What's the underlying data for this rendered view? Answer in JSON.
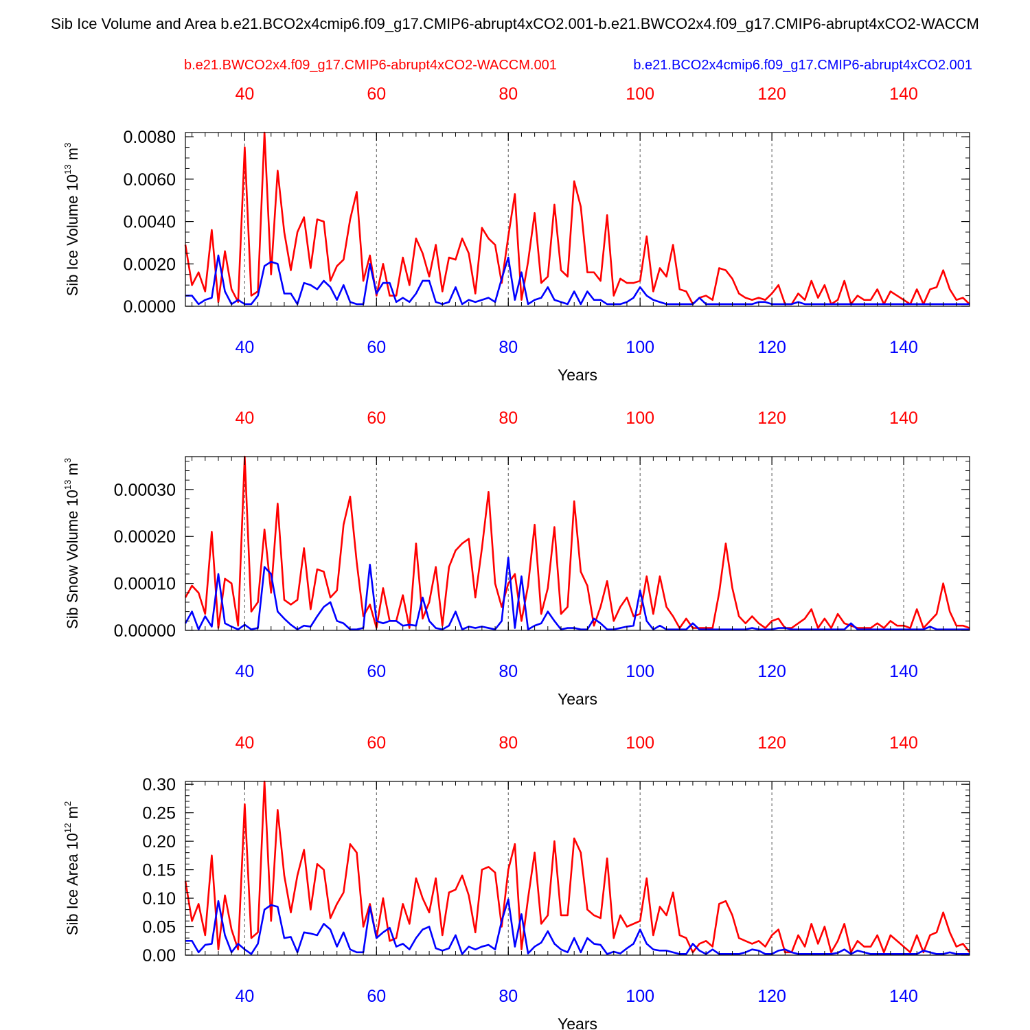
{
  "title": "Sib Ice Volume and Area b.e21.BCO2x4cmip6.f09_g17.CMIP6-abrupt4xCO2.001-b.e21.BWCO2x4.f09_g17.CMIP6-abrupt4xCO2-WACCM",
  "colors": {
    "run_red": "#ff0000",
    "run_blue": "#0000ff",
    "axis": "#000000",
    "grid": "#555555"
  },
  "legend": {
    "red": "b.e21.BWCO2x4.f09_g17.CMIP6-abrupt4xCO2-WACCM.001",
    "blue": "b.e21.BCO2x4cmip6.f09_g17.CMIP6-abrupt4xCO2.001"
  },
  "chart_data": [
    {
      "type": "line",
      "ylabel": {
        "text": "Sib Ice Volume 10",
        "exp": "13",
        "unit": " m",
        "unit_exp": "3"
      },
      "xlabel": "Years",
      "xlim": [
        31,
        150
      ],
      "ylim": [
        0,
        0.0082
      ],
      "x_ticks": [
        40,
        60,
        80,
        100,
        120,
        140
      ],
      "y_ticks": [
        0,
        0.002,
        0.004,
        0.006,
        0.008
      ],
      "y_tick_labels": [
        "0.0000",
        "0.0020",
        "0.0040",
        "0.0060",
        "0.0080"
      ],
      "y_minor_step": 0.0005,
      "grid": "vertical dashed at x ticks",
      "x_start": 31,
      "series": [
        {
          "name": "b.e21.BWCO2x4.f09_g17.CMIP6-abrupt4xCO2-WACCM.001",
          "color": "#ff0000",
          "values": [
            0.0029,
            0.001,
            0.0016,
            0.0007,
            0.0036,
            0.0002,
            0.0026,
            0.0008,
            0.0002,
            0.0075,
            0.0005,
            0.0007,
            0.0082,
            0.0015,
            0.0064,
            0.0035,
            0.0017,
            0.0035,
            0.0042,
            0.0018,
            0.0041,
            0.004,
            0.0012,
            0.0019,
            0.0022,
            0.0041,
            0.0054,
            0.0012,
            0.0024,
            0.0005,
            0.002,
            0.0005,
            0.0005,
            0.0023,
            0.001,
            0.0032,
            0.0025,
            0.0014,
            0.0029,
            0.0007,
            0.0023,
            0.0022,
            0.0032,
            0.0025,
            0.0006,
            0.0037,
            0.0032,
            0.0029,
            0.0011,
            0.0033,
            0.0053,
            0.0003,
            0.0021,
            0.0044,
            0.0011,
            0.0014,
            0.0048,
            0.0017,
            0.0014,
            0.0059,
            0.0047,
            0.0016,
            0.0016,
            0.0012,
            0.0043,
            0.0005,
            0.0013,
            0.0011,
            0.0011,
            0.0012,
            0.0033,
            0.0007,
            0.0018,
            0.0014,
            0.0029,
            0.0008,
            0.0007,
            0.0001,
            0.0004,
            0.0005,
            0.0003,
            0.0018,
            0.0017,
            0.0013,
            0.0006,
            0.0004,
            0.0003,
            0.0004,
            0.0003,
            0.0006,
            0.001,
            0.0001,
            0.0001,
            0.0006,
            0.0003,
            0.0012,
            0.0004,
            0.001,
            0.0001,
            0.0003,
            0.0012,
            0.0001,
            0.0005,
            0.0003,
            0.0003,
            0.0008,
            0.0001,
            0.0007,
            0.0005,
            0.0003,
            0.0001,
            0.0008,
            0.0001,
            0.0008,
            0.0009,
            0.0017,
            0.0008,
            0.0003,
            0.0004,
            0.0001
          ]
        },
        {
          "name": "b.e21.BCO2x4cmip6.f09_g17.CMIP6-abrupt4xCO2.001",
          "color": "#0000ff",
          "values": [
            0.0005,
            0.0005,
            0.0001,
            0.0003,
            0.0004,
            0.0024,
            0.0007,
            0.0001,
            0.0003,
            0.0001,
            0.0001,
            0.0005,
            0.0019,
            0.0021,
            0.002,
            0.0006,
            0.0006,
            0.0001,
            0.0011,
            0.001,
            0.0008,
            0.0012,
            0.0009,
            0.0003,
            0.001,
            0.0002,
            0.0001,
            0.0001,
            0.002,
            0.0006,
            0.0011,
            0.0011,
            0.0002,
            0.0004,
            0.0002,
            0.0006,
            0.0012,
            0.0012,
            0.0002,
            0.0001,
            0.0002,
            0.0009,
            0.0001,
            0.0003,
            0.0002,
            0.0003,
            0.0004,
            0.0002,
            0.0013,
            0.0023,
            0.0003,
            0.0016,
            0.0001,
            0.0003,
            0.0004,
            0.0009,
            0.0003,
            0.0002,
            0.0001,
            0.0007,
            0.0001,
            0.0007,
            0.0003,
            0.0003,
            0.0001,
            0.0001,
            0.0001,
            0.0002,
            0.0004,
            0.0009,
            0.0005,
            0.0003,
            0.0002,
            0.0001,
            0.0001,
            0.0001,
            0.0001,
            0.0001,
            0.0004,
            0.0001,
            0.0001,
            0.0001,
            0.0001,
            0.0001,
            0.0001,
            0.0001,
            0.0001,
            0.0002,
            0.0002,
            0.0001,
            0.0001,
            0.0001,
            0.0001,
            0.0002,
            0.0001,
            0.0001,
            0.0001,
            0.0001,
            0.0001,
            0.0001,
            0.0001,
            0.0001,
            0.0001,
            0.0001,
            0.0001,
            0.0001,
            0.0001,
            0.0001,
            0.0001,
            0.0001,
            0.0001,
            0.0001,
            0.0001,
            0.0001,
            0.0001,
            0.0001,
            0.0001,
            0.0001,
            0.0001,
            0.0001
          ]
        }
      ]
    },
    {
      "type": "line",
      "ylabel": {
        "text": "Sib Snow Volume 10",
        "exp": "13",
        "unit": " m",
        "unit_exp": "3"
      },
      "xlabel": "Years",
      "xlim": [
        31,
        150
      ],
      "ylim": [
        0,
        0.00037
      ],
      "x_ticks": [
        40,
        60,
        80,
        100,
        120,
        140
      ],
      "y_ticks": [
        0,
        0.0001,
        0.0002,
        0.0003
      ],
      "y_tick_labels": [
        "0.00000",
        "0.00010",
        "0.00020",
        "0.00030"
      ],
      "y_minor_step": 2e-05,
      "grid": "vertical dashed at x ticks",
      "x_start": 31,
      "series": [
        {
          "name": "b.e21.BWCO2x4.f09_g17.CMIP6-abrupt4xCO2-WACCM.001",
          "color": "#ff0000",
          "values": [
            7e-05,
            9.5e-05,
            8e-05,
            3.5e-05,
            0.00021,
            5e-06,
            0.00011,
            0.0001,
            1e-05,
            0.00037,
            4e-05,
            6e-05,
            0.000215,
            8e-05,
            0.00027,
            6.5e-05,
            5.5e-05,
            6.5e-05,
            0.000175,
            4.5e-05,
            0.00013,
            0.000125,
            7e-05,
            8.5e-05,
            0.000225,
            0.000285,
            0.000145,
            3e-05,
            5.5e-05,
            5e-06,
            9e-05,
            2e-05,
            2e-05,
            7.5e-05,
            5e-06,
            0.000185,
            2.5e-05,
            6e-05,
            0.000135,
            1e-05,
            0.000135,
            0.00017,
            0.000185,
            0.000195,
            7e-05,
            0.000175,
            0.000295,
            0.0001,
            5e-05,
            0.0001,
            0.00012,
            2e-05,
            9.5e-05,
            0.000225,
            3.5e-05,
            9e-05,
            0.00022,
            3.5e-05,
            5e-05,
            0.000275,
            0.000125,
            9.5e-05,
            1e-05,
            5e-05,
            0.000105,
            2e-05,
            5e-05,
            7e-05,
            3e-05,
            3.5e-05,
            0.000115,
            3.5e-05,
            0.000115,
            5e-05,
            3e-05,
            5e-06,
            2.5e-05,
            5e-06,
            5e-06,
            5e-06,
            5e-06,
            8e-05,
            0.000185,
            9e-05,
            3e-05,
            1.5e-05,
            3e-05,
            1.5e-05,
            5e-06,
            2e-05,
            2.5e-05,
            5e-06,
            5e-06,
            1.5e-05,
            2.5e-05,
            4.5e-05,
            5e-06,
            2.5e-05,
            5e-06,
            3.5e-05,
            1.5e-05,
            1e-05,
            5e-06,
            5e-06,
            5e-06,
            1.5e-05,
            5e-06,
            2e-05,
            1e-05,
            1e-05,
            5e-06,
            4.5e-05,
            5e-06,
            2e-05,
            3.5e-05,
            0.0001,
            4e-05,
            1e-05,
            1e-05,
            5e-06
          ]
        },
        {
          "name": "b.e21.BCO2x4cmip6.f09_g17.CMIP6-abrupt4xCO2.001",
          "color": "#0000ff",
          "values": [
            1.5e-05,
            4e-05,
            2e-06,
            3e-05,
            8e-06,
            0.00012,
            1.5e-05,
            8e-06,
            2e-06,
            1.2e-05,
            2e-06,
            5e-06,
            0.000135,
            0.00012,
            4e-05,
            2.5e-05,
            1.2e-05,
            2e-06,
            1e-05,
            8e-06,
            3e-05,
            5e-05,
            6e-05,
            2e-05,
            1.5e-05,
            2e-06,
            2e-06,
            5e-06,
            0.00014,
            2e-05,
            1.5e-05,
            2e-05,
            2e-05,
            1e-05,
            1.2e-05,
            1e-05,
            7e-05,
            2e-05,
            5e-06,
            2e-06,
            1e-05,
            4e-05,
            2e-06,
            8e-06,
            5e-06,
            8e-06,
            5e-06,
            2e-06,
            2e-05,
            0.000155,
            5e-06,
            0.000115,
            2e-06,
            1e-05,
            1.5e-05,
            4e-05,
            2e-05,
            2e-06,
            5e-06,
            5e-06,
            2e-06,
            2e-06,
            2.5e-05,
            1.5e-05,
            2e-06,
            2e-06,
            5e-06,
            8e-06,
            1e-05,
            8.5e-05,
            2e-05,
            2e-06,
            1e-05,
            2e-06,
            2e-06,
            2e-06,
            2e-06,
            1.5e-05,
            2e-06,
            2e-06,
            2e-06,
            2e-06,
            2e-06,
            2e-06,
            2e-06,
            2e-06,
            5e-06,
            2e-06,
            2e-06,
            2e-06,
            5e-06,
            5e-06,
            2e-06,
            2e-06,
            2e-06,
            2e-06,
            2e-06,
            2e-06,
            2e-06,
            2e-06,
            2e-06,
            1.5e-05,
            2e-06,
            2e-06,
            2e-06,
            2e-06,
            2e-06,
            2e-06,
            2e-06,
            2e-06,
            2e-06,
            2e-06,
            2e-06,
            8e-06,
            2e-06,
            2e-06,
            2e-06,
            2e-06,
            2e-06,
            2e-06
          ]
        }
      ]
    },
    {
      "type": "line",
      "ylabel": {
        "text": "Sib Ice Area 10",
        "exp": "12",
        "unit": " m",
        "unit_exp": "2"
      },
      "xlabel": "Years",
      "xlim": [
        31,
        150
      ],
      "ylim": [
        0,
        0.305
      ],
      "x_ticks": [
        40,
        60,
        80,
        100,
        120,
        140
      ],
      "y_ticks": [
        0,
        0.05,
        0.1,
        0.15,
        0.2,
        0.25,
        0.3
      ],
      "y_tick_labels": [
        "0.00",
        "0.05",
        "0.10",
        "0.15",
        "0.20",
        "0.25",
        "0.30"
      ],
      "y_minor_step": 0.01,
      "grid": "vertical dashed at x ticks",
      "x_start": 31,
      "series": [
        {
          "name": "b.e21.BWCO2x4.f09_g17.CMIP6-abrupt4xCO2-WACCM.001",
          "color": "#ff0000",
          "values": [
            0.13,
            0.06,
            0.09,
            0.035,
            0.175,
            0.01,
            0.105,
            0.045,
            0.01,
            0.265,
            0.03,
            0.04,
            0.305,
            0.06,
            0.255,
            0.14,
            0.075,
            0.14,
            0.185,
            0.08,
            0.16,
            0.15,
            0.065,
            0.09,
            0.11,
            0.195,
            0.18,
            0.05,
            0.09,
            0.03,
            0.1,
            0.025,
            0.03,
            0.09,
            0.055,
            0.135,
            0.1,
            0.075,
            0.135,
            0.035,
            0.11,
            0.115,
            0.14,
            0.105,
            0.04,
            0.15,
            0.155,
            0.145,
            0.05,
            0.15,
            0.195,
            0.01,
            0.1,
            0.18,
            0.055,
            0.07,
            0.2,
            0.07,
            0.07,
            0.205,
            0.18,
            0.08,
            0.07,
            0.065,
            0.17,
            0.03,
            0.07,
            0.05,
            0.055,
            0.06,
            0.135,
            0.035,
            0.085,
            0.07,
            0.11,
            0.035,
            0.03,
            0.005,
            0.02,
            0.025,
            0.015,
            0.09,
            0.095,
            0.07,
            0.03,
            0.025,
            0.02,
            0.025,
            0.015,
            0.035,
            0.045,
            0.005,
            0.005,
            0.035,
            0.015,
            0.055,
            0.02,
            0.05,
            0.005,
            0.025,
            0.055,
            0.005,
            0.025,
            0.015,
            0.015,
            0.035,
            0.005,
            0.035,
            0.025,
            0.015,
            0.005,
            0.035,
            0.005,
            0.035,
            0.04,
            0.075,
            0.04,
            0.015,
            0.02,
            0.005
          ]
        },
        {
          "name": "b.e21.BCO2x4cmip6.f09_g17.CMIP6-abrupt4xCO2.001",
          "color": "#0000ff",
          "values": [
            0.025,
            0.025,
            0.005,
            0.018,
            0.02,
            0.095,
            0.035,
            0.005,
            0.02,
            0.01,
            0.002,
            0.02,
            0.08,
            0.088,
            0.085,
            0.03,
            0.032,
            0.005,
            0.04,
            0.038,
            0.035,
            0.055,
            0.045,
            0.015,
            0.04,
            0.01,
            0.005,
            0.005,
            0.085,
            0.03,
            0.04,
            0.048,
            0.015,
            0.02,
            0.01,
            0.03,
            0.045,
            0.05,
            0.012,
            0.008,
            0.012,
            0.035,
            0.002,
            0.015,
            0.01,
            0.015,
            0.018,
            0.01,
            0.06,
            0.098,
            0.015,
            0.072,
            0.003,
            0.015,
            0.022,
            0.042,
            0.02,
            0.01,
            0.005,
            0.03,
            0.005,
            0.03,
            0.02,
            0.018,
            0.002,
            0.006,
            0.003,
            0.012,
            0.02,
            0.045,
            0.02,
            0.01,
            0.008,
            0.008,
            0.005,
            0.002,
            0.002,
            0.02,
            0.008,
            0.002,
            0.01,
            0.002,
            0.002,
            0.002,
            0.002,
            0.005,
            0.01,
            0.008,
            0.002,
            0.002,
            0.008,
            0.01,
            0.005,
            0.002,
            0.002,
            0.002,
            0.002,
            0.002,
            0.002,
            0.004,
            0.01,
            0.002,
            0.008,
            0.005,
            0.002,
            0.002,
            0.002,
            0.002,
            0.002,
            0.002,
            0.002,
            0.002,
            0.008,
            0.005,
            0.002,
            0.002,
            0.005,
            0.002,
            0.002,
            0.002
          ]
        }
      ]
    }
  ]
}
